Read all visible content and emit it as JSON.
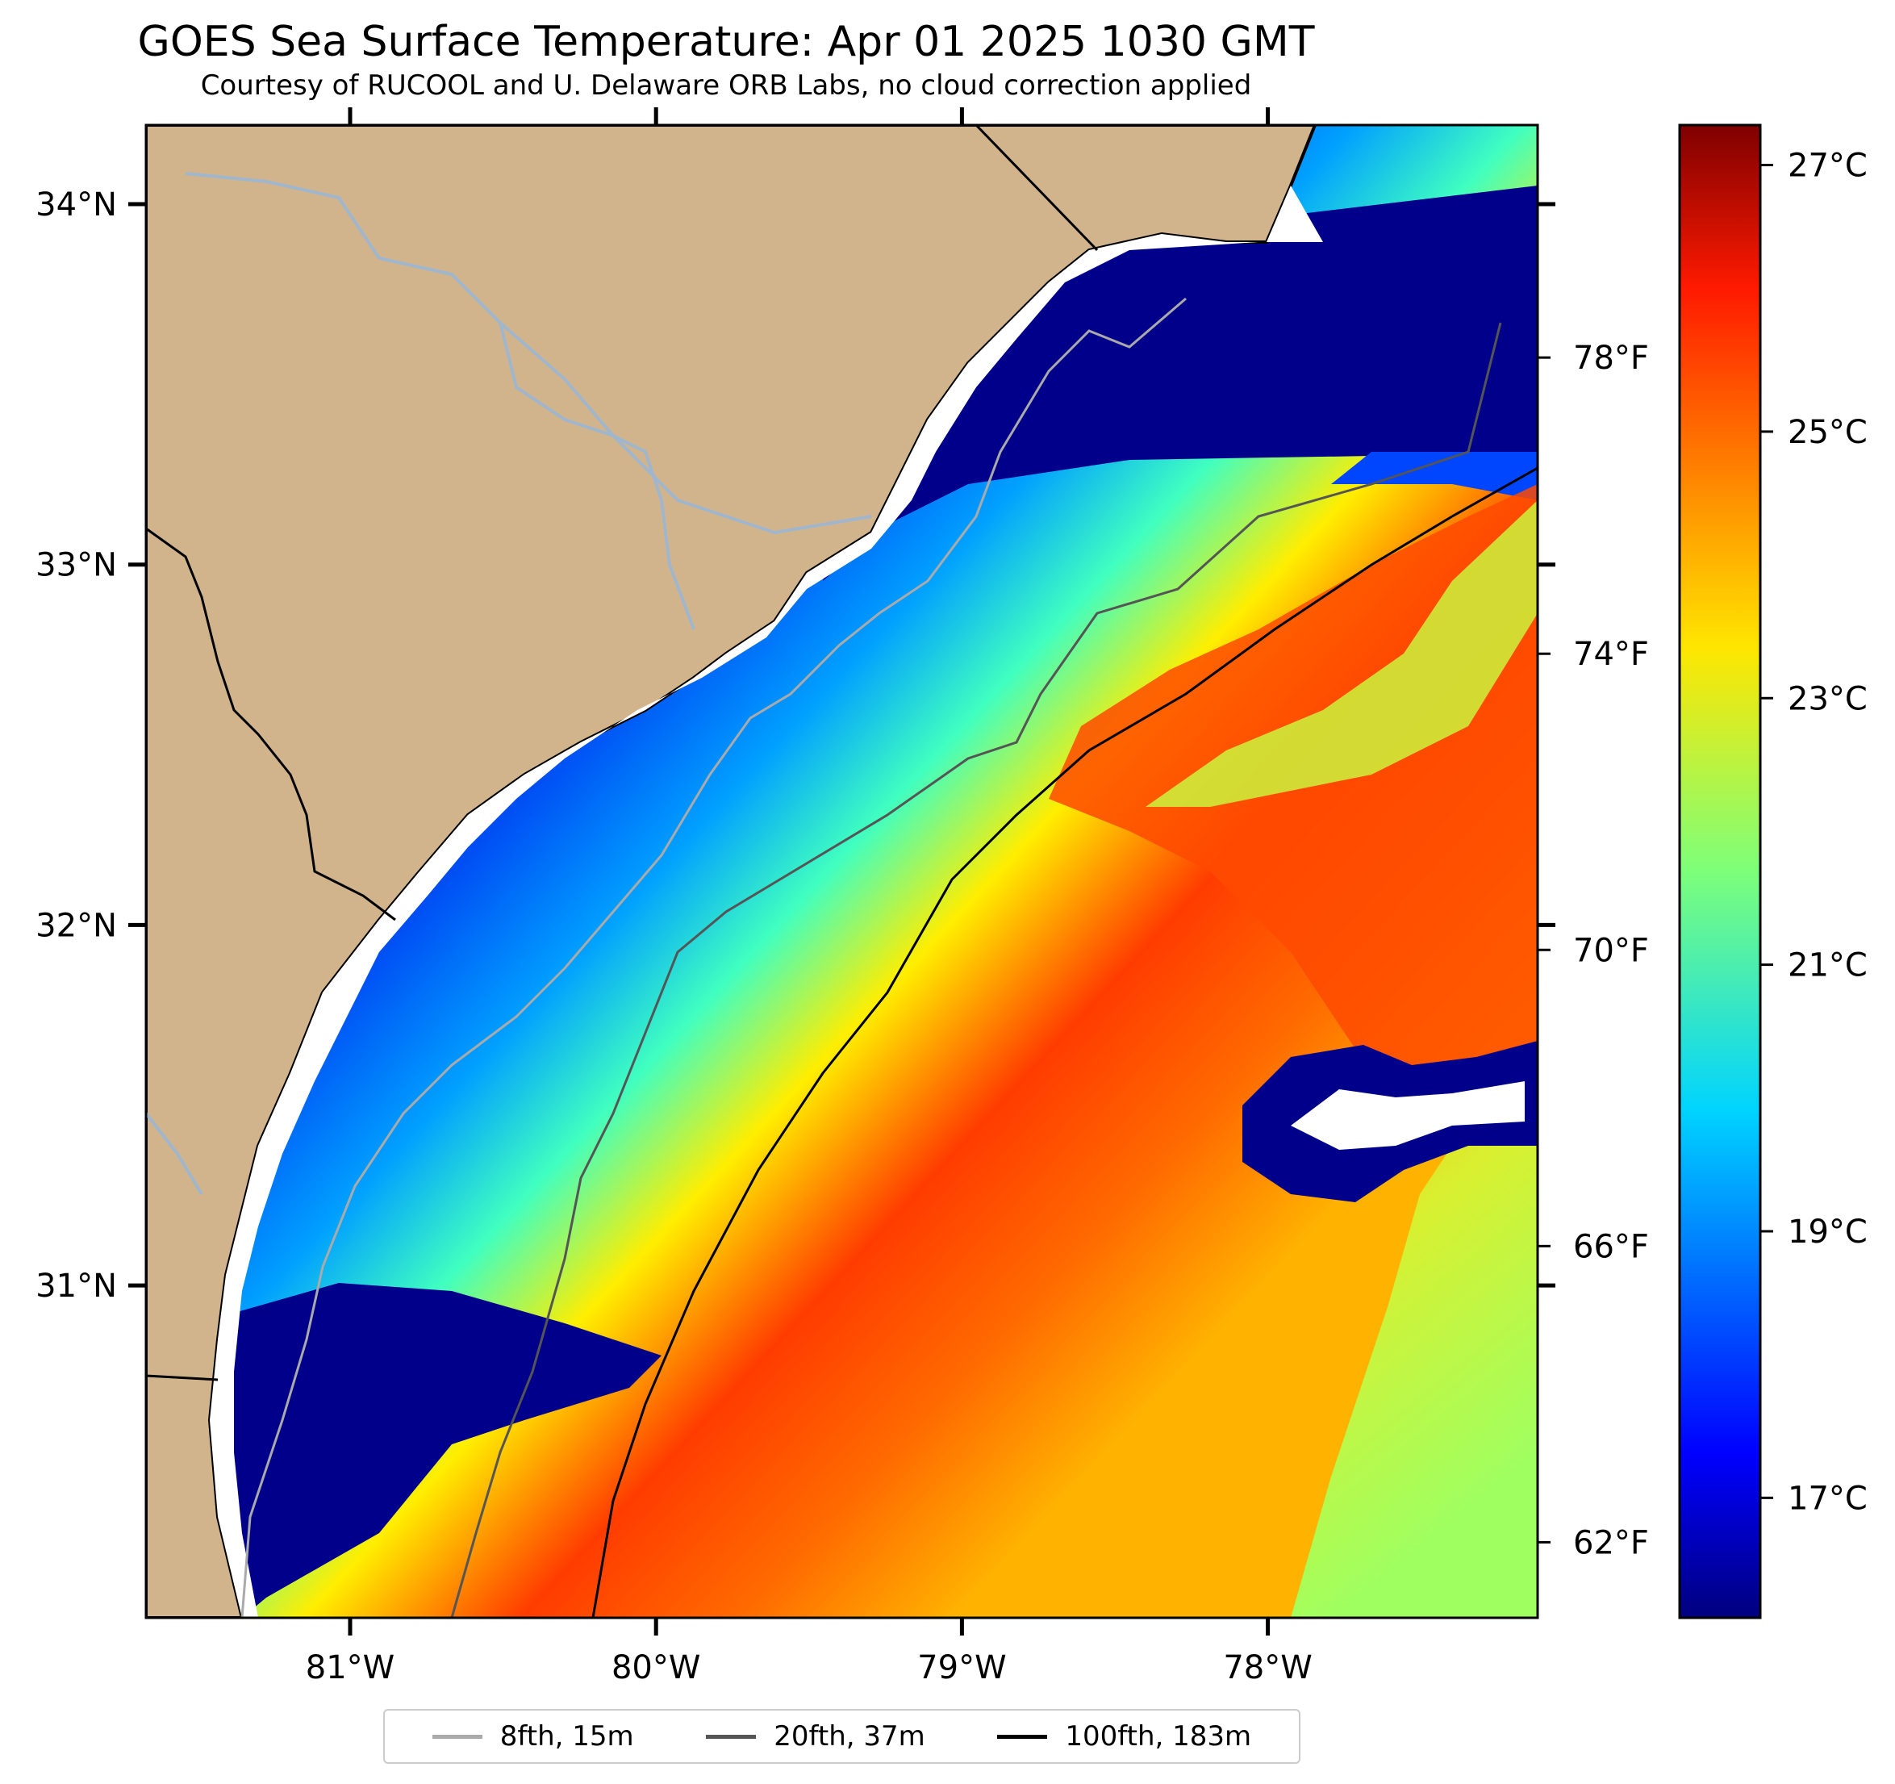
{
  "figure": {
    "title": "GOES Sea Surface Temperature: Apr 01 2025 1030 GMT",
    "subtitle": "Courtesy of RUCOOL and U. Delaware ORB Labs, no cloud correction applied"
  },
  "map": {
    "land_color": "#d2b48c",
    "cloud_mask_color": "#ffffff",
    "lat_labels": [
      "34°N",
      "33°N",
      "32°N",
      "31°N"
    ],
    "lon_labels": [
      "81°W",
      "80°W",
      "79°W",
      "78°W"
    ],
    "lat_values": [
      34,
      33,
      32,
      31
    ],
    "lon_values": [
      -81,
      -80,
      -79,
      -78
    ]
  },
  "colorbar": {
    "colormap": "jet",
    "celsius_labels": [
      "27°C",
      "25°C",
      "23°C",
      "21°C",
      "19°C",
      "17°C"
    ],
    "fahrenheit_labels": [
      "78°F",
      "74°F",
      "70°F",
      "66°F",
      "62°F"
    ],
    "celsius_values": [
      27,
      25,
      23,
      21,
      19,
      17
    ],
    "fahrenheit_values": [
      78,
      74,
      70,
      66,
      62
    ],
    "range_c": [
      16.1,
      27.3
    ]
  },
  "legend": {
    "items": [
      {
        "label": "8fth, 15m",
        "color": "#aaaaaa"
      },
      {
        "label": "20fth, 37m",
        "color": "#555555"
      },
      {
        "label": "100fth, 183m",
        "color": "#000000"
      }
    ]
  }
}
